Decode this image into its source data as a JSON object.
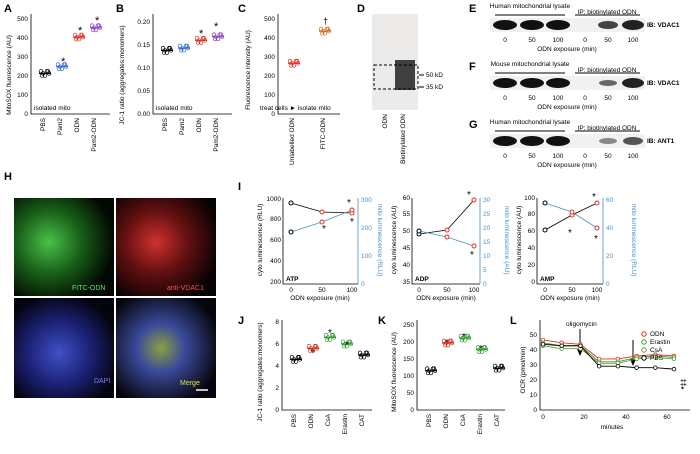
{
  "panels": {
    "A": {
      "letter": "A",
      "ylabel": "MitoSOX fluorescence (AU)",
      "yticks": [
        "0",
        "100",
        "200",
        "300",
        "400",
        "500"
      ],
      "categories": [
        "PBS",
        "Pam2",
        "ODN",
        "Pam2-ODN"
      ],
      "note": "isolated mito",
      "stars": [
        "*",
        "*",
        "*"
      ],
      "colors": [
        "#000000",
        "#2f6fd0",
        "#e03020",
        "#9040c0"
      ]
    },
    "B": {
      "letter": "B",
      "ylabel": "JC-1 ratio (aggregates:monomers)",
      "yticks": [
        "0.00",
        "0.05",
        "0.10",
        "0.15",
        "0.20"
      ],
      "categories": [
        "PBS",
        "Pam2",
        "ODN",
        "Pam2-ODN"
      ],
      "note": "isolated mito",
      "stars": [
        "*",
        "*",
        "*"
      ]
    },
    "C": {
      "letter": "C",
      "ylabel": "Fluorescence intensity (AU)",
      "yticks": [
        "0",
        "100",
        "200",
        "300",
        "400",
        "500"
      ],
      "categories": [
        "Unlabelled ODN",
        "FITC-ODN"
      ],
      "note": "treat cells ► isolate mito",
      "dagger": "†"
    },
    "D": {
      "letter": "D",
      "markers": [
        "50 kD",
        "35 kD"
      ],
      "lanes": [
        "ODN",
        "Biotinylated ODN"
      ]
    },
    "E": {
      "letter": "E",
      "group1": "Human mitochondrial lysate",
      "group2": "IP: biotinylated ODN",
      "ib": "IB: VDAC1",
      "ticks": [
        "0",
        "50",
        "100",
        "0",
        "50",
        "100"
      ],
      "xlabel": "ODN exposure (min)"
    },
    "F": {
      "letter": "F",
      "group1": "Mouse mitochondrial lysate",
      "group2": "IP: biotinylated ODN",
      "ib": "IB: VDAC1",
      "ticks": [
        "0",
        "50",
        "100",
        "0",
        "50",
        "100"
      ],
      "xlabel": "ODN exposure (min)"
    },
    "G": {
      "letter": "G",
      "group1": "Human mitochondrial lysate",
      "group2": "IP: biotinylated ODN",
      "ib": "IB: ANT1",
      "ticks": [
        "0",
        "50",
        "100",
        "0",
        "50",
        "100"
      ],
      "xlabel": "ODN exposure (min)"
    },
    "H": {
      "letter": "H",
      "labels": [
        "FITC-ODN",
        "anti-VDAC1",
        "DAPI",
        "Merge"
      ]
    },
    "I": {
      "letter": "I",
      "xlabel": "ODN exposure (min)",
      "xticks": [
        "0",
        "50",
        "100"
      ],
      "sub": [
        {
          "name": "ATP",
          "ylabel": "cyto luminescence (RLU)",
          "y2label": "mito luminescence (RLU)",
          "yticks": [
            "200",
            "400",
            "600",
            "800",
            "1000"
          ],
          "y2ticks": [
            "0",
            "100",
            "200",
            "300"
          ]
        },
        {
          "name": "ADP",
          "ylabel": "cyto luminescence (AU)",
          "y2label": "mito luminescence (AU)",
          "yticks": [
            "35",
            "40",
            "45",
            "50",
            "55",
            "60"
          ],
          "y2ticks": [
            "0",
            "5",
            "10",
            "15",
            "20",
            "25",
            "30"
          ]
        },
        {
          "name": "AMP",
          "ylabel": "cyto luminescence (AU)",
          "y2label": "mito luminescence (RLU)",
          "yticks": [
            "0",
            "20",
            "40",
            "60",
            "80",
            "100"
          ],
          "y2ticks": [
            "0",
            "20",
            "40",
            "60"
          ]
        }
      ]
    },
    "J": {
      "letter": "J",
      "ylabel": "JC-1 ratio (aggregates:monomers)",
      "yticks": [
        "0",
        "2",
        "4",
        "6",
        "8"
      ],
      "categories": [
        "PBS",
        "ODN",
        "CsA",
        "Erastin",
        "CAT"
      ]
    },
    "K": {
      "letter": "K",
      "ylabel": "MitoSOX fluorescence (AU)",
      "yticks": [
        "0",
        "50",
        "100",
        "150",
        "200",
        "250"
      ],
      "categories": [
        "PBS",
        "ODN",
        "CsA",
        "Erastin",
        "CAT"
      ]
    },
    "L": {
      "letter": "L",
      "ylabel": "OCR (pmol/min)",
      "xlabel": "minutes",
      "xticks": [
        "0",
        "20",
        "40",
        "60"
      ],
      "yticks": [
        "0",
        "10",
        "20",
        "30",
        "40",
        "50"
      ],
      "annot": "oligomycin",
      "legend": [
        "ODN",
        "Erastin",
        "CsA",
        "PBS"
      ],
      "colors": [
        "#e03020",
        "#30a030",
        "#6a9a3a",
        "#000000"
      ],
      "marks": "*‡‡"
    }
  },
  "chart_data": [
    {
      "type": "scatter",
      "panel": "A",
      "categories": [
        "PBS",
        "Pam2",
        "ODN",
        "Pam2-ODN"
      ],
      "values": [
        240,
        280,
        455,
        510
      ],
      "ylim": [
        0,
        550
      ],
      "ylabel": "MitoSOX fluorescence (AU)"
    },
    {
      "type": "scatter",
      "panel": "B",
      "categories": [
        "PBS",
        "Pam2",
        "ODN",
        "Pam2-ODN"
      ],
      "values": [
        0.14,
        0.145,
        0.162,
        0.17
      ],
      "ylim": [
        0,
        0.22
      ],
      "ylabel": "JC-1 ratio (aggregates:monomers)"
    },
    {
      "type": "scatter",
      "panel": "C",
      "categories": [
        "Unlabelled ODN",
        "FITC-ODN"
      ],
      "values": [
        300,
        490
      ],
      "ylim": [
        0,
        550
      ],
      "ylabel": "Fluorescence intensity (AU)"
    },
    {
      "type": "line",
      "panel": "I-ATP",
      "x": [
        0,
        50,
        100
      ],
      "series": [
        {
          "values": [
            950,
            850,
            800
          ]
        },
        {
          "values": [
            600,
            750,
            850
          ]
        }
      ]
    },
    {
      "type": "line",
      "panel": "I-ADP",
      "x": [
        0,
        50,
        100
      ],
      "series": [
        {
          "values": [
            40,
            42,
            55
          ]
        },
        {
          "values": [
            18,
            15,
            12
          ]
        }
      ]
    },
    {
      "type": "line",
      "panel": "I-AMP",
      "x": [
        0,
        50,
        100
      ],
      "series": [
        {
          "values": [
            40,
            60,
            80
          ]
        },
        {
          "values": [
            60,
            50,
            45
          ]
        }
      ]
    },
    {
      "type": "scatter",
      "panel": "J",
      "categories": [
        "PBS",
        "ODN",
        "CsA",
        "Erastin",
        "CAT"
      ],
      "values": [
        4.6,
        5.6,
        6.6,
        6.0,
        5.0
      ],
      "ylim": [
        0,
        8
      ]
    },
    {
      "type": "scatter",
      "panel": "K",
      "categories": [
        "PBS",
        "ODN",
        "CsA",
        "Erastin",
        "CAT"
      ],
      "values": [
        120,
        205,
        220,
        185,
        128
      ],
      "ylim": [
        0,
        260
      ]
    },
    {
      "type": "line",
      "panel": "L",
      "x": [
        0,
        10,
        20,
        30,
        40,
        50,
        60,
        70
      ],
      "series": [
        {
          "name": "ODN",
          "values": [
            48,
            46,
            45,
            35,
            35,
            37,
            38,
            37
          ]
        },
        {
          "name": "Erastin",
          "values": [
            46,
            44,
            44,
            33,
            33,
            36,
            37,
            36
          ]
        },
        {
          "name": "CsA",
          "values": [
            44,
            42,
            42,
            32,
            32,
            35,
            36,
            35
          ]
        },
        {
          "name": "PBS",
          "values": [
            45,
            44,
            44,
            30,
            30,
            29,
            29,
            28
          ]
        }
      ],
      "ylim": [
        0,
        55
      ]
    }
  ]
}
